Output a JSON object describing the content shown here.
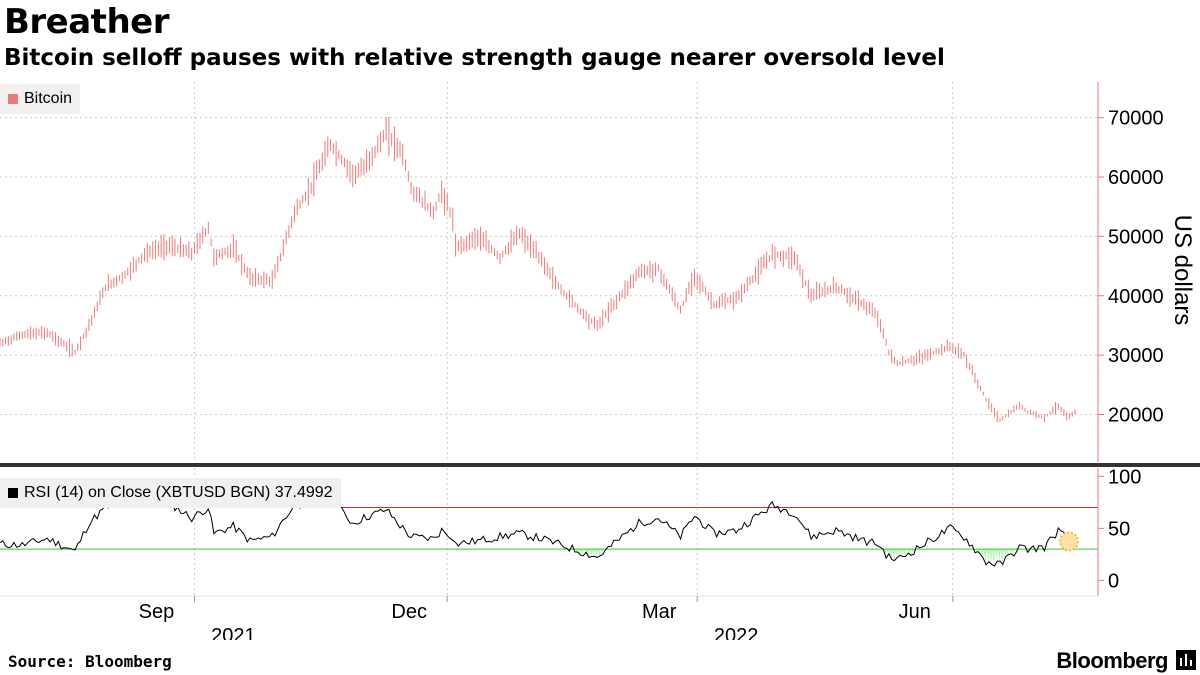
{
  "header": {
    "title": "Breather",
    "subtitle": "Bitcoin selloff pauses with relative strength gauge nearer oversold level"
  },
  "footer": {
    "source": "Source: Bloomberg",
    "brand": "Bloomberg"
  },
  "colors": {
    "price": "#f07878",
    "rsi_line": "#000000",
    "overbought": "#cc3333",
    "oversold": "#33cc33",
    "oversold_fill": "#b6f2b6",
    "grid": "#cccccc",
    "axis": "#f07878",
    "marker": "#f5b942"
  },
  "chart_data": [
    {
      "type": "bar",
      "style": "ohlc",
      "legend": "Bitcoin",
      "ylabel": "US dollars",
      "ylim": [
        12000,
        76000
      ],
      "yticks": [
        20000,
        30000,
        40000,
        50000,
        60000,
        70000
      ],
      "ytick_labels": [
        "20000",
        "30000",
        "40000",
        "50000",
        "60000",
        "70000"
      ],
      "x_start": "2021-06-23",
      "x_end": "2022-07-02",
      "grid": true,
      "legend_position": "top-left",
      "series": [
        {
          "name": "Bitcoin",
          "points": [
            [
              "2021-06-23",
              32000
            ],
            [
              "2021-07-01",
              33500
            ],
            [
              "2021-07-10",
              33800
            ],
            [
              "2021-07-20",
              30500
            ],
            [
              "2021-07-25",
              35000
            ],
            [
              "2021-07-31",
              41500
            ],
            [
              "2021-08-07",
              43500
            ],
            [
              "2021-08-14",
              47000
            ],
            [
              "2021-08-22",
              48500
            ],
            [
              "2021-08-31",
              47200
            ],
            [
              "2021-09-06",
              51500
            ],
            [
              "2021-09-08",
              46500
            ],
            [
              "2021-09-15",
              48000
            ],
            [
              "2021-09-21",
              43000
            ],
            [
              "2021-09-29",
              42500
            ],
            [
              "2021-10-03",
              48000
            ],
            [
              "2021-10-07",
              54000
            ],
            [
              "2021-10-12",
              57500
            ],
            [
              "2021-10-16",
              61500
            ],
            [
              "2021-10-20",
              65500
            ],
            [
              "2021-10-28",
              60500
            ],
            [
              "2021-11-01",
              61500
            ],
            [
              "2021-11-09",
              67500
            ],
            [
              "2021-11-15",
              64000
            ],
            [
              "2021-11-18",
              58000
            ],
            [
              "2021-11-26",
              54000
            ],
            [
              "2021-11-29",
              57500
            ],
            [
              "2021-12-03",
              53000
            ],
            [
              "2021-12-04",
              48000
            ],
            [
              "2021-12-12",
              50000
            ],
            [
              "2021-12-20",
              46500
            ],
            [
              "2021-12-27",
              50500
            ],
            [
              "2022-01-04",
              46000
            ],
            [
              "2022-01-10",
              41500
            ],
            [
              "2022-01-21",
              36000
            ],
            [
              "2022-01-24",
              35000
            ],
            [
              "2022-02-08",
              44000
            ],
            [
              "2022-02-15",
              44500
            ],
            [
              "2022-02-23",
              37500
            ],
            [
              "2022-02-28",
              43500
            ],
            [
              "2022-03-07",
              38500
            ],
            [
              "2022-03-15",
              39500
            ],
            [
              "2022-03-28",
              47000
            ],
            [
              "2022-04-05",
              46500
            ],
            [
              "2022-04-11",
              40000
            ],
            [
              "2022-04-20",
              41500
            ],
            [
              "2022-04-30",
              38500
            ],
            [
              "2022-05-05",
              36500
            ],
            [
              "2022-05-09",
              30500
            ],
            [
              "2022-05-12",
              28500
            ],
            [
              "2022-05-20",
              29500
            ],
            [
              "2022-05-31",
              31500
            ],
            [
              "2022-06-05",
              30000
            ],
            [
              "2022-06-13",
              22500
            ],
            [
              "2022-06-18",
              19000
            ],
            [
              "2022-06-25",
              21500
            ],
            [
              "2022-06-28",
              20500
            ],
            [
              "2022-07-04",
              19500
            ],
            [
              "2022-07-09",
              21500
            ],
            [
              "2022-07-12",
              19500
            ],
            [
              "2022-07-15",
              20300
            ]
          ]
        }
      ]
    },
    {
      "type": "line",
      "legend": "RSI (14)  on Close (XBTUSD BGN) 37.4992",
      "ylim": [
        -15,
        108
      ],
      "yticks": [
        0,
        50,
        100
      ],
      "ytick_labels": [
        "0",
        "50",
        "100"
      ],
      "overbought_level": 70,
      "oversold_level": 30,
      "last_value": 37.4992,
      "legend_position": "top-left",
      "x_ticks": [
        "2021-09-01",
        "2021-12-01",
        "2022-03-01",
        "2022-06-01"
      ],
      "x_tick_labels": [
        "Sep",
        "Dec",
        "Mar",
        "Jun"
      ],
      "x_year_labels": [
        {
          "x": "2021-09-15",
          "label": "2021"
        },
        {
          "x": "2022-03-15",
          "label": "2022"
        }
      ],
      "series": [
        {
          "name": "RSI (14)",
          "points": [
            [
              "2021-06-23",
              35
            ],
            [
              "2021-07-01",
              34
            ],
            [
              "2021-07-10",
              40
            ],
            [
              "2021-07-20",
              28
            ],
            [
              "2021-07-25",
              55
            ],
            [
              "2021-07-31",
              70
            ],
            [
              "2021-08-07",
              74
            ],
            [
              "2021-08-14",
              78
            ],
            [
              "2021-08-22",
              76
            ],
            [
              "2021-08-31",
              60
            ],
            [
              "2021-09-06",
              70
            ],
            [
              "2021-09-08",
              45
            ],
            [
              "2021-09-15",
              52
            ],
            [
              "2021-09-21",
              38
            ],
            [
              "2021-09-29",
              42
            ],
            [
              "2021-10-03",
              58
            ],
            [
              "2021-10-07",
              72
            ],
            [
              "2021-10-12",
              75
            ],
            [
              "2021-10-16",
              76
            ],
            [
              "2021-10-20",
              78
            ],
            [
              "2021-10-28",
              55
            ],
            [
              "2021-11-01",
              60
            ],
            [
              "2021-11-09",
              68
            ],
            [
              "2021-11-15",
              50
            ],
            [
              "2021-11-18",
              42
            ],
            [
              "2021-11-26",
              40
            ],
            [
              "2021-11-29",
              48
            ],
            [
              "2021-12-03",
              42
            ],
            [
              "2021-12-04",
              35
            ],
            [
              "2021-12-12",
              38
            ],
            [
              "2021-12-20",
              42
            ],
            [
              "2021-12-27",
              45
            ],
            [
              "2022-01-04",
              40
            ],
            [
              "2022-01-10",
              35
            ],
            [
              "2022-01-21",
              25
            ],
            [
              "2022-01-24",
              22
            ],
            [
              "2022-02-08",
              55
            ],
            [
              "2022-02-15",
              60
            ],
            [
              "2022-02-23",
              42
            ],
            [
              "2022-02-28",
              62
            ],
            [
              "2022-03-07",
              45
            ],
            [
              "2022-03-15",
              48
            ],
            [
              "2022-03-28",
              72
            ],
            [
              "2022-04-05",
              65
            ],
            [
              "2022-04-11",
              42
            ],
            [
              "2022-04-20",
              48
            ],
            [
              "2022-04-30",
              38
            ],
            [
              "2022-05-05",
              35
            ],
            [
              "2022-05-09",
              22
            ],
            [
              "2022-05-12",
              20
            ],
            [
              "2022-05-20",
              32
            ],
            [
              "2022-05-31",
              50
            ],
            [
              "2022-06-05",
              42
            ],
            [
              "2022-06-13",
              18
            ],
            [
              "2022-06-18",
              15
            ],
            [
              "2022-06-25",
              32
            ],
            [
              "2022-06-28",
              30
            ],
            [
              "2022-07-04",
              32
            ],
            [
              "2022-07-09",
              48
            ],
            [
              "2022-07-12",
              40
            ],
            [
              "2022-07-15",
              37.5
            ]
          ]
        }
      ]
    }
  ]
}
